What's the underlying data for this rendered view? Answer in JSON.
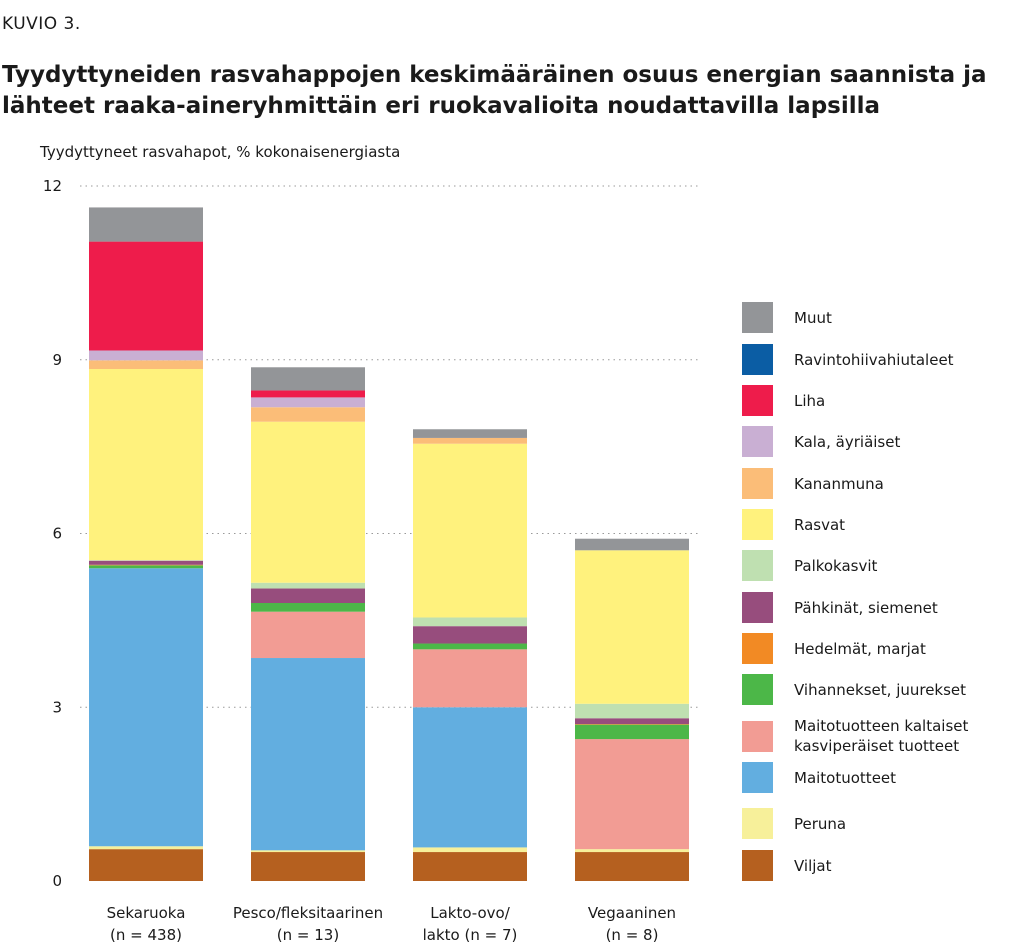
{
  "figure_label": "KUVIO 3.",
  "title": "Tyydyttyneiden rasvahappojen keskimääräinen osuus energian saannista ja lähteet raaka-aineryhmittäin eri ruokavalioita noudattavilla lapsilla",
  "chart_data": {
    "type": "bar",
    "stacked": true,
    "ylabel": "Tyydyttyneet rasvahapot, % kokonaisenergiasta",
    "ylim": [
      0,
      12
    ],
    "yticks": [
      0,
      3,
      6,
      9,
      12
    ],
    "grid": "horizontal-dotted",
    "legend_position": "right",
    "categories": [
      {
        "line1": "Sekaruoka",
        "line2": "(n = 438)"
      },
      {
        "line1": "Pesco/fleksitaarinen",
        "line2": "(n = 13)"
      },
      {
        "line1": "Lakto-ovo/",
        "line2": "lakto (n = 7)"
      },
      {
        "line1": "Vegaaninen",
        "line2": "(n = 8)"
      }
    ],
    "series": [
      {
        "name": "Viljat",
        "color": "#b5601f",
        "values": [
          0.55,
          0.5,
          0.5,
          0.5
        ]
      },
      {
        "name": "Peruna",
        "color": "#f7f09a",
        "values": [
          0.05,
          0.03,
          0.08,
          0.05
        ]
      },
      {
        "name": "Maitotuotteet",
        "color": "#62aee0",
        "values": [
          4.8,
          3.32,
          2.42,
          0.0
        ]
      },
      {
        "name": "Maitotuotteen kaltaiset kasviperäiset tuotteet",
        "color": "#f29c94",
        "values": [
          0.0,
          0.8,
          1.0,
          1.9
        ]
      },
      {
        "name": "Vihannekset, juurekset",
        "color": "#4cb748",
        "values": [
          0.05,
          0.15,
          0.1,
          0.25
        ]
      },
      {
        "name": "Hedelmät, marjat",
        "color": "#f28a24",
        "values": [
          0.01,
          0.0,
          0.0,
          0.01
        ]
      },
      {
        "name": "Pähkinät, siemenet",
        "color": "#974d7d",
        "values": [
          0.07,
          0.25,
          0.3,
          0.1
        ]
      },
      {
        "name": "Palkokasvit",
        "color": "#bfe0b1",
        "values": [
          0.01,
          0.1,
          0.15,
          0.25
        ]
      },
      {
        "name": "Rasvat",
        "color": "#fff27d",
        "values": [
          3.3,
          2.78,
          3.0,
          2.65
        ]
      },
      {
        "name": "Kananmuna",
        "color": "#fbbd78",
        "values": [
          0.15,
          0.25,
          0.1,
          0.0
        ]
      },
      {
        "name": "Kala, äyriäiset",
        "color": "#c9afd3",
        "values": [
          0.17,
          0.17,
          0.0,
          0.0
        ]
      },
      {
        "name": "Liha",
        "color": "#ee1c4b",
        "values": [
          1.88,
          0.12,
          0.0,
          0.0
        ]
      },
      {
        "name": "Ravintohiivahiutaleet",
        "color": "#0b5da4",
        "values": [
          0.0,
          0.0,
          0.0,
          0.0
        ]
      },
      {
        "name": "Muut",
        "color": "#939598",
        "values": [
          0.59,
          0.4,
          0.15,
          0.2
        ]
      }
    ]
  }
}
